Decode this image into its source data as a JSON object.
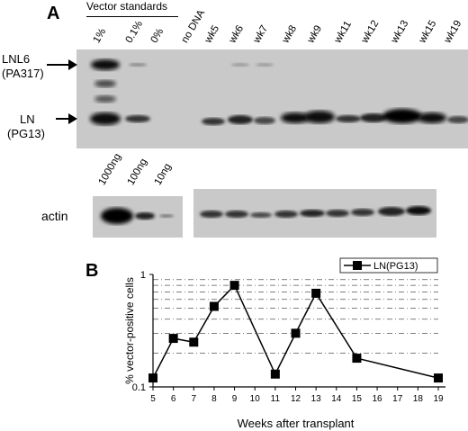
{
  "panel_a": {
    "label": "A",
    "standards_header": "Vector standards",
    "lanes": [
      "1%",
      "0.1%",
      "0%",
      "no DNA",
      "wk5",
      "wk6",
      "wk7",
      "wk8",
      "wk9",
      "wk11",
      "wk12",
      "wk13",
      "wk15",
      "wk19"
    ],
    "band_labels": {
      "upper_line1": "LNL6",
      "upper_line2": "(PA317)",
      "lower_line1": "LN",
      "lower_line2": "(PG13)"
    },
    "actin_lanes": [
      "1000ng",
      "100ng",
      "10ng"
    ],
    "actin_label": "actin"
  },
  "panel_b": {
    "label": "B"
  },
  "chart_data": {
    "type": "line",
    "title": "",
    "xlabel": "Weeks after transplant",
    "ylabel": "% vector-positive cells",
    "y_scale": "log",
    "ylim": [
      0.1,
      1
    ],
    "y_ticks": [
      "0.1",
      "1"
    ],
    "x_ticks": [
      5,
      6,
      7,
      8,
      9,
      10,
      11,
      12,
      13,
      14,
      15,
      16,
      17,
      18,
      19
    ],
    "grid": "dash-dot horizontal lines",
    "legend": "top-right",
    "series": [
      {
        "name": "LN(PG13)",
        "x": [
          5,
          6,
          7,
          8,
          9,
          11,
          12,
          13,
          15,
          19
        ],
        "y": [
          0.12,
          0.27,
          0.25,
          0.52,
          0.8,
          0.13,
          0.3,
          0.68,
          0.18,
          0.12
        ]
      }
    ]
  }
}
